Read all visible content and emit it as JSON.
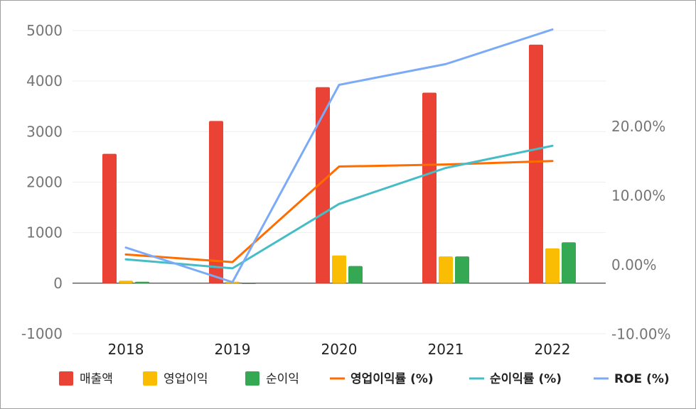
{
  "chart_data": {
    "type": "bar",
    "categories": [
      "2018",
      "2019",
      "2020",
      "2021",
      "2022"
    ],
    "bar_series": [
      {
        "name": "매출액",
        "color": "#ea4335",
        "values": [
          2560,
          3210,
          3880,
          3770,
          4720
        ]
      },
      {
        "name": "영업이익",
        "color": "#fbbc04",
        "values": [
          50,
          30,
          550,
          530,
          690
        ]
      },
      {
        "name": "순이익",
        "color": "#34a853",
        "values": [
          30,
          -10,
          340,
          530,
          810
        ]
      }
    ],
    "line_series": [
      {
        "name": "영업이익률 (%)",
        "color": "#ff6d01",
        "values": [
          1.5,
          0.4,
          14.2,
          14.5,
          15.0
        ]
      },
      {
        "name": "순이익률 (%)",
        "color": "#46bdc6",
        "values": [
          0.8,
          -0.5,
          8.8,
          14.0,
          17.2
        ]
      },
      {
        "name": "ROE (%)",
        "color": "#7baaf7",
        "values": [
          2.5,
          -2.5,
          26.0,
          29.0,
          34.0
        ]
      }
    ],
    "y_left": {
      "ticks": [
        "5000",
        "4000",
        "3000",
        "2000",
        "1000",
        "0",
        "-1000"
      ],
      "min": -1000,
      "max": 5000
    },
    "y_right": {
      "ticks": [
        "20.00%",
        "10.00%",
        "0.00%",
        "-10.00%"
      ],
      "min": -10,
      "max": 30
    },
    "legend_position": "bottom",
    "grid": true
  }
}
